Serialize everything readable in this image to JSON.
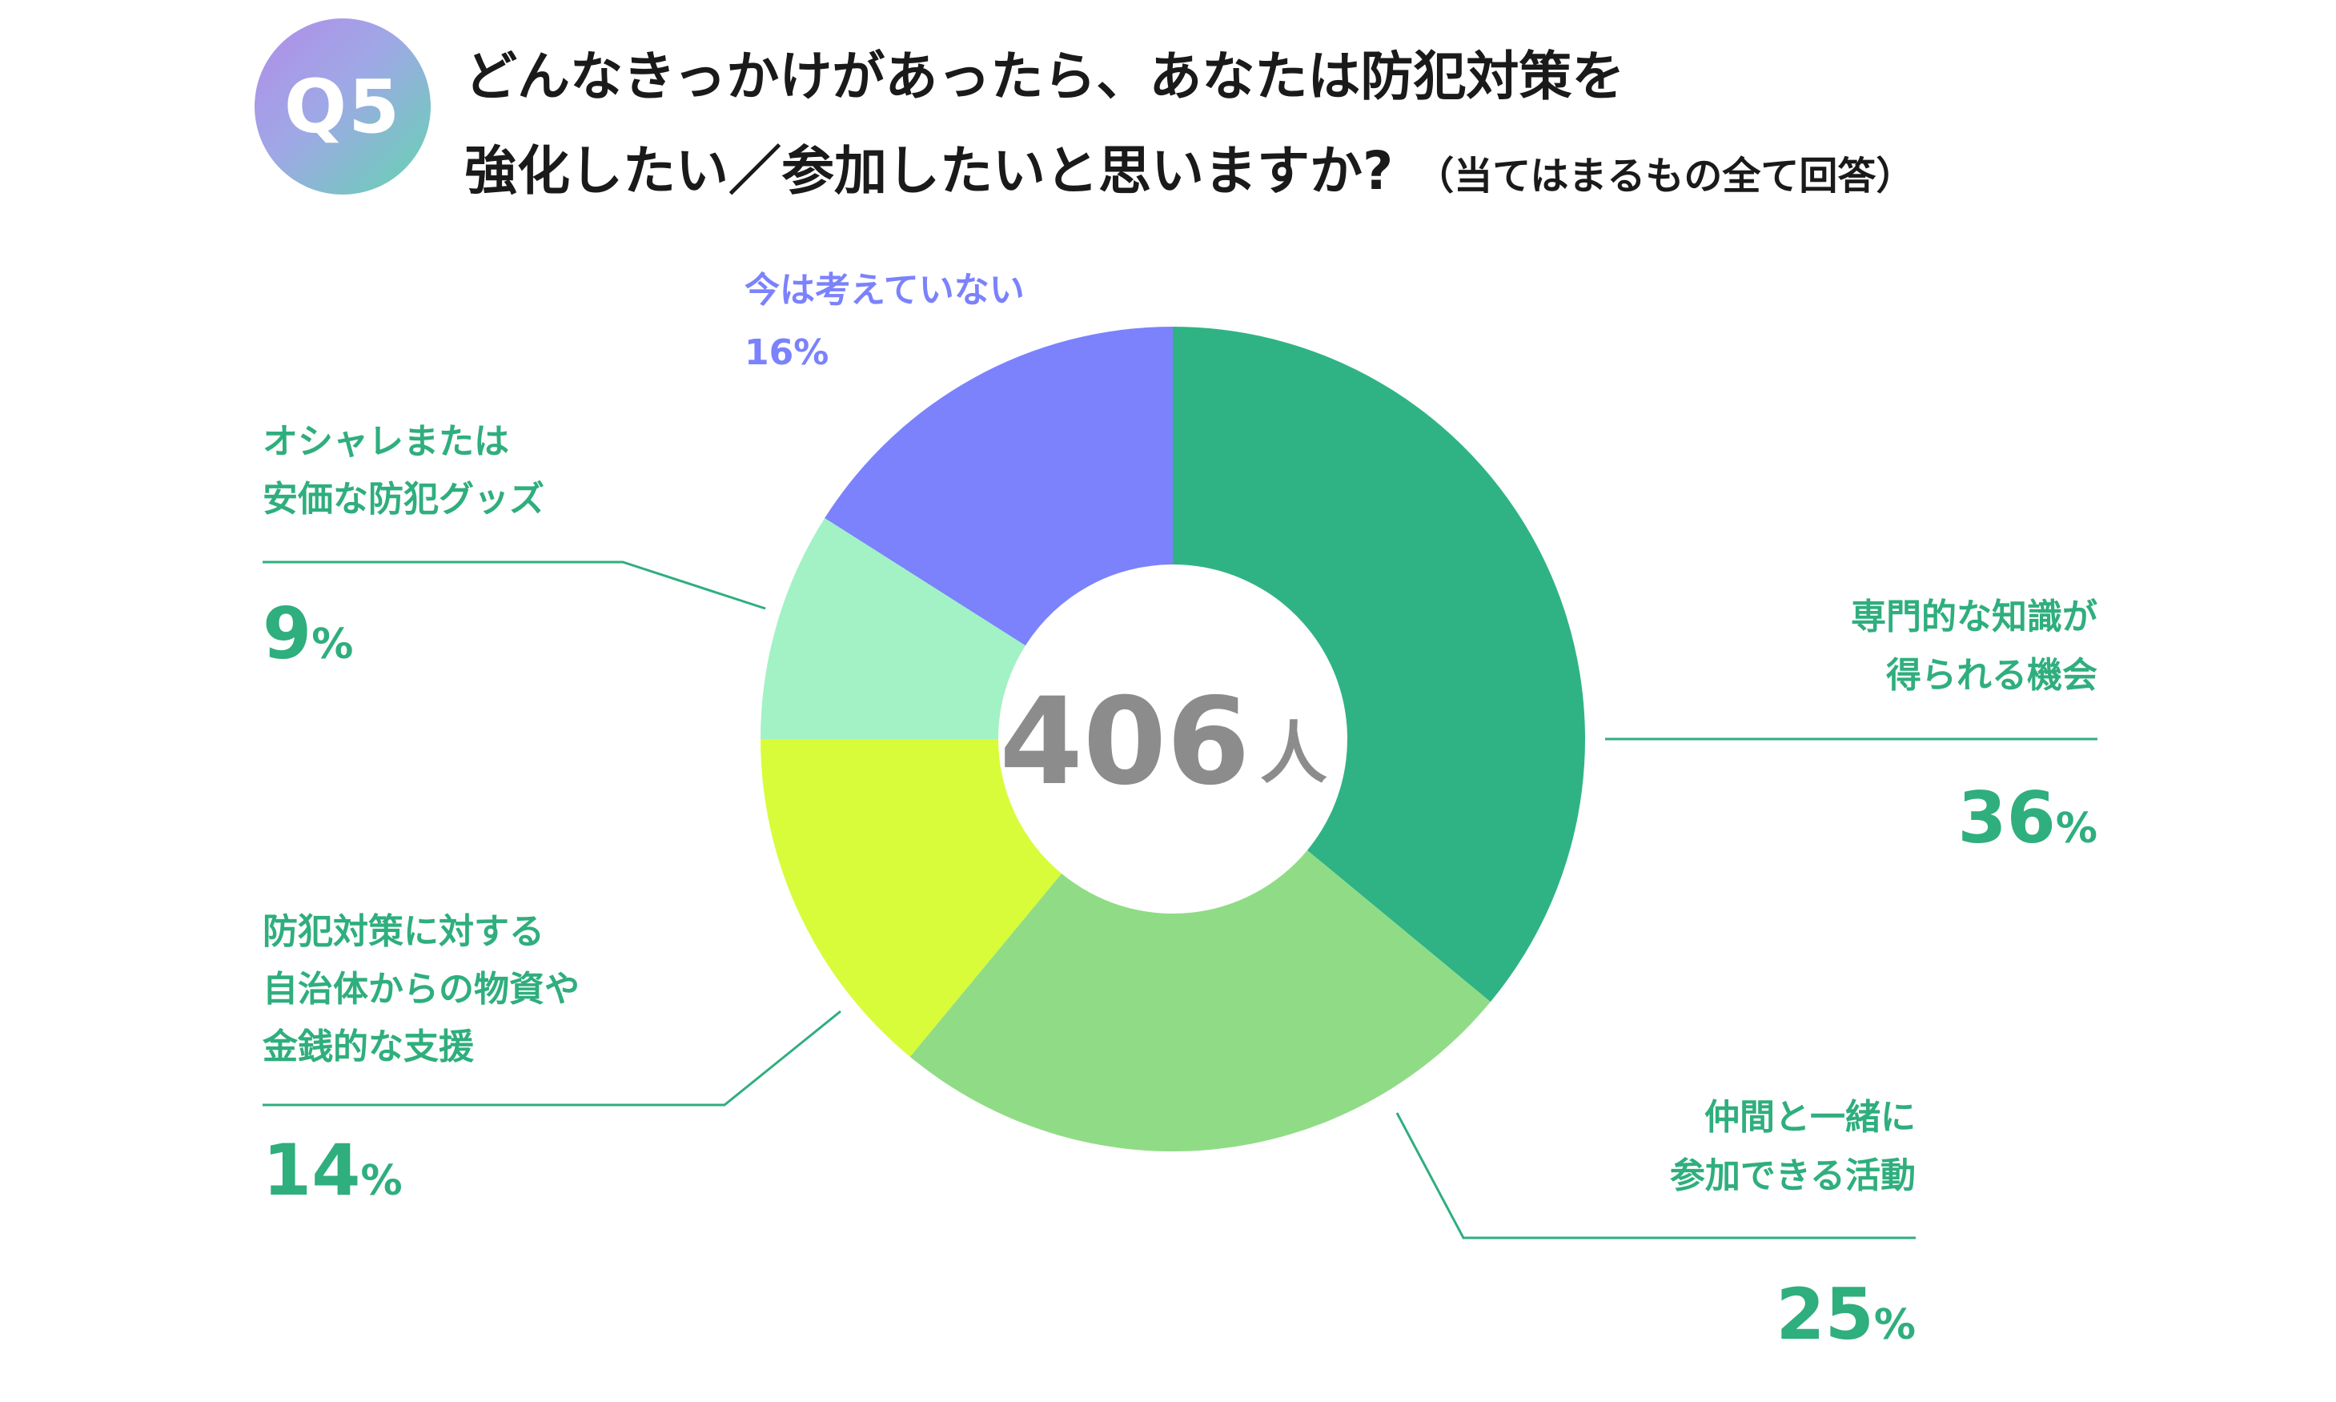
{
  "question": {
    "badge": "Q5",
    "title_line1": "どんなきっかけがあったら、あなたは防犯対策を",
    "title_line2": "強化したい／参加したいと思いますか?",
    "title_note": "（当てはまるもの全て回答）"
  },
  "center": {
    "number": "406",
    "unit": "人"
  },
  "colors": {
    "accent_text": "#2fae7e",
    "leader_line": "#2fae7e",
    "slice_1": "#2fb385",
    "slice_2": "#90dc86",
    "slice_3": "#d8fc3a",
    "slice_4": "#a2f2c5",
    "slice_5": "#7b82fc",
    "slice_5_text": "#7b82fc"
  },
  "chart_data": {
    "type": "pie",
    "donut": true,
    "total_respondents": 406,
    "slices": [
      {
        "label_lines": [
          "専門的な知識が",
          "得られる機会"
        ],
        "value": 36,
        "pct_num": "36",
        "pct_unit": "%",
        "color": "#2fb385"
      },
      {
        "label_lines": [
          "仲間と一緒に",
          "参加できる活動"
        ],
        "value": 25,
        "pct_num": "25",
        "pct_unit": "%",
        "color": "#90dc86"
      },
      {
        "label_lines": [
          "防犯対策に対する",
          "自治体からの物資や",
          "金銭的な支援"
        ],
        "value": 14,
        "pct_num": "14",
        "pct_unit": "%",
        "color": "#d8fc3a"
      },
      {
        "label_lines": [
          "オシャレまたは",
          "安価な防犯グッズ"
        ],
        "value": 9,
        "pct_num": "9",
        "pct_unit": "%",
        "color": "#a2f2c5"
      },
      {
        "label_lines": [
          "今は考えていない"
        ],
        "value": 16,
        "pct_num": "16",
        "pct_unit": "%",
        "color": "#7b82fc"
      }
    ]
  }
}
